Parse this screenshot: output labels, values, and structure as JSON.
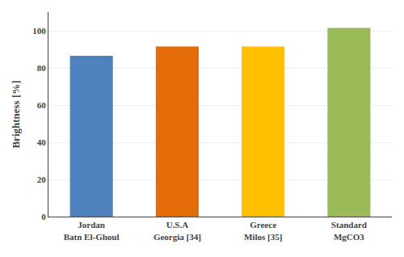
{
  "chart_data": {
    "type": "bar",
    "categories": [
      "Jordan\nBatn El-Ghoul",
      "U.S.A\nGeorgia [34]",
      "Greece\nMilos [35]",
      "Standard\nMgCO3"
    ],
    "values": [
      86.5,
      91.5,
      91.5,
      101.5
    ],
    "colors": [
      "#4F81BD",
      "#E36C09",
      "#FFC000",
      "#9BBB59"
    ],
    "ylabel": "Brightness [%]",
    "ylim": [
      0,
      110
    ],
    "yticks": [
      0,
      20,
      40,
      60,
      80,
      100
    ],
    "grid": true
  }
}
